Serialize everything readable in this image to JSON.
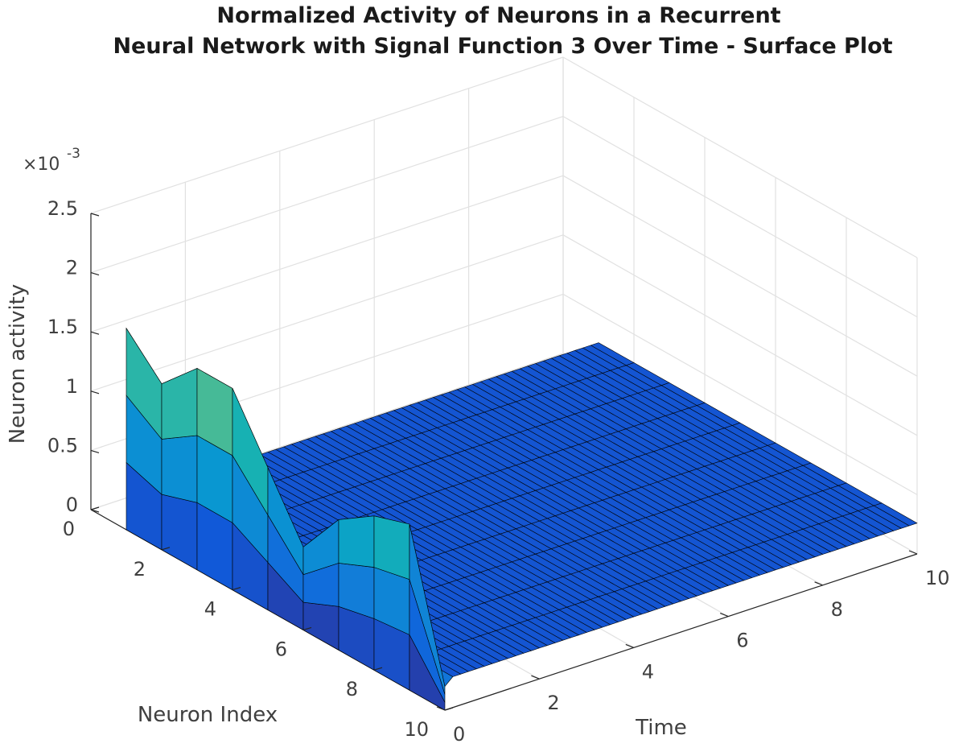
{
  "chart_data": {
    "type": "surface",
    "title": [
      "Normalized Activity of Neurons in a Recurrent",
      "Neural Network with Signal Function 3 Over Time - Surface Plot"
    ],
    "xlabel": "Time",
    "ylabel": "Neuron Index",
    "zlabel": "Neuron activity",
    "z_exponent": {
      "base": "×10",
      "power": "-3"
    },
    "xlim": [
      0,
      10
    ],
    "ylim": [
      0,
      10
    ],
    "zlim": [
      0,
      0.0025
    ],
    "x_ticks": [
      "0",
      "2",
      "4",
      "6",
      "8",
      "10"
    ],
    "y_ticks": [
      "0",
      "2",
      "4",
      "6",
      "8",
      "10"
    ],
    "z_ticks": [
      "0",
      "0.5",
      "1",
      "1.5",
      "2",
      "2.5"
    ],
    "grid": true,
    "colormap": "parula",
    "neuron_index": [
      1,
      2,
      3,
      4,
      5,
      6,
      7,
      8,
      9,
      10
    ],
    "time_samples": [
      0,
      0.1,
      10
    ],
    "activity_at_t0": [
      0.0017,
      0.0014,
      0.0017,
      0.0017,
      0.0012,
      0.0007,
      0.0011,
      0.0013,
      0.0014,
      0.0002
    ],
    "activity_steady_state": [
      0.00026,
      0.00026,
      0.00026,
      0.00026,
      0.00026,
      0.00026,
      0.00026,
      0.00026,
      0.00026,
      0.00026
    ]
  }
}
